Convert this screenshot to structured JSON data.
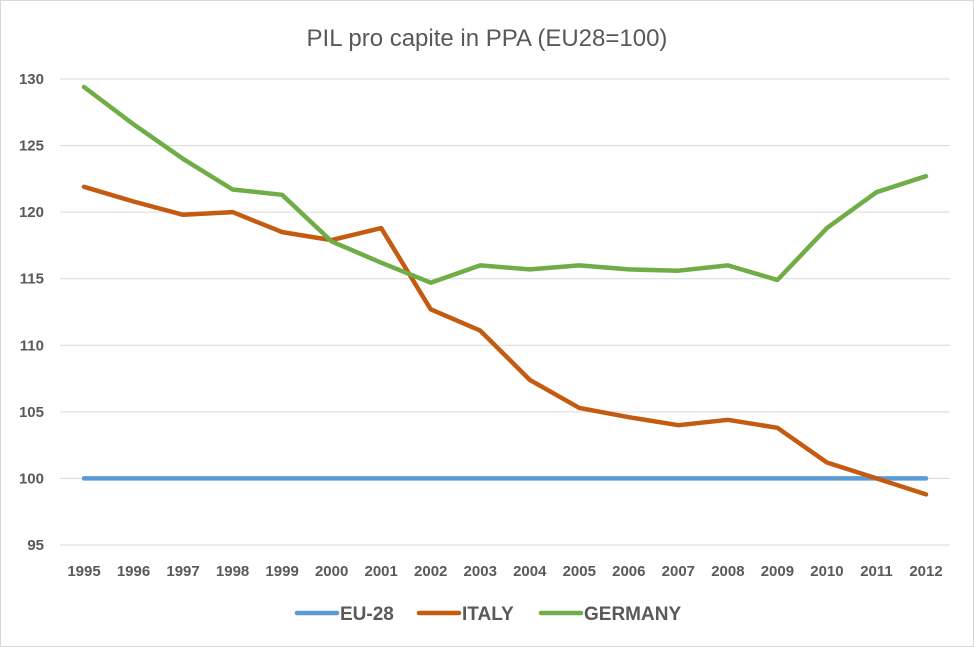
{
  "chart_data": {
    "type": "line",
    "title": "PIL pro capite in PPA  (EU28=100)",
    "xlabel": "",
    "ylabel": "",
    "categories": [
      "1995",
      "1996",
      "1997",
      "1998",
      "1999",
      "2000",
      "2001",
      "2002",
      "2003",
      "2004",
      "2005",
      "2006",
      "2007",
      "2008",
      "2009",
      "2010",
      "2011",
      "2012"
    ],
    "ylim": [
      95,
      130
    ],
    "yticks": [
      95,
      100,
      105,
      110,
      115,
      120,
      125,
      130
    ],
    "grid": true,
    "legend_position": "bottom",
    "series": [
      {
        "name": "EU-28",
        "color": "#5b9bd5",
        "values": [
          100,
          100,
          100,
          100,
          100,
          100,
          100,
          100,
          100,
          100,
          100,
          100,
          100,
          100,
          100,
          100,
          100,
          100
        ]
      },
      {
        "name": "ITALY",
        "color": "#c55a11",
        "values": [
          121.9,
          120.8,
          119.8,
          120.0,
          118.5,
          117.9,
          118.8,
          112.7,
          111.1,
          107.4,
          105.3,
          104.6,
          104.0,
          104.4,
          103.8,
          101.2,
          100.0,
          98.8
        ]
      },
      {
        "name": "GERMANY",
        "color": "#70ad47",
        "values": [
          129.4,
          126.6,
          124.0,
          121.7,
          121.3,
          117.8,
          116.2,
          114.7,
          116.0,
          115.7,
          116.0,
          115.7,
          115.6,
          116.0,
          114.9,
          118.8,
          121.5,
          122.7
        ]
      }
    ]
  }
}
